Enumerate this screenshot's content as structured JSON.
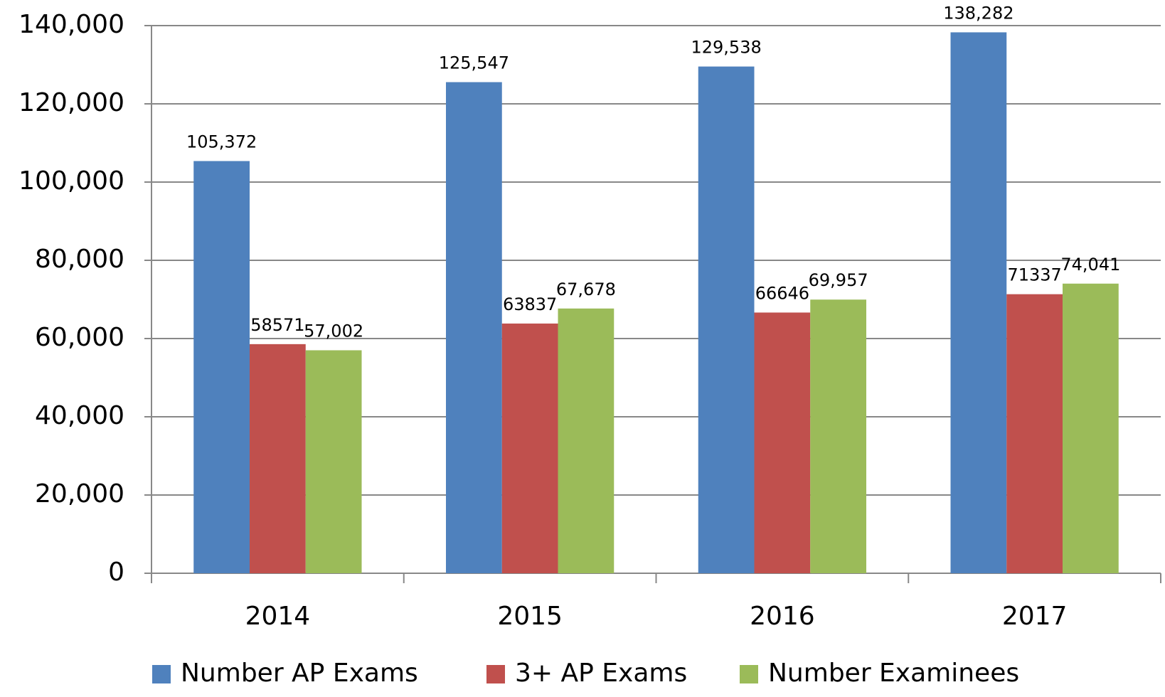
{
  "chart_data": {
    "type": "bar",
    "categories": [
      "2014",
      "2015",
      "2016",
      "2017"
    ],
    "series": [
      {
        "name": "Number AP Exams",
        "color": "#4f81bd",
        "values": [
          105372,
          125547,
          129538,
          138282
        ],
        "value_labels": [
          "105,372",
          "125,547",
          "129,538",
          "138,282"
        ]
      },
      {
        "name": "3+ AP Exams",
        "color": "#c0504d",
        "values": [
          58571,
          63837,
          66646,
          71337
        ]
      },
      {
        "name": "Number Examinees",
        "color": "#9bbb59",
        "values": [
          57002,
          67678,
          69957,
          74041
        ],
        "value_labels": [
          "57,002",
          "67,678",
          "69,957",
          "74,041"
        ]
      }
    ],
    "ylim": [
      0,
      140000
    ],
    "yticks": [
      0,
      {
        "value": 20000,
        "label": "20,000"
      },
      {
        "value": 40000,
        "label": "40,000"
      },
      {
        "value": 60000,
        "label": "60,000"
      },
      {
        "value": 80000,
        "label": "80,000"
      },
      {
        "value": 100000,
        "label": "100,000"
      },
      {
        "value": 120000,
        "label": "120,000"
      },
      {
        "value": 140000,
        "label": "140,000"
      }
    ],
    "grid": true,
    "legend": "bottom"
  }
}
